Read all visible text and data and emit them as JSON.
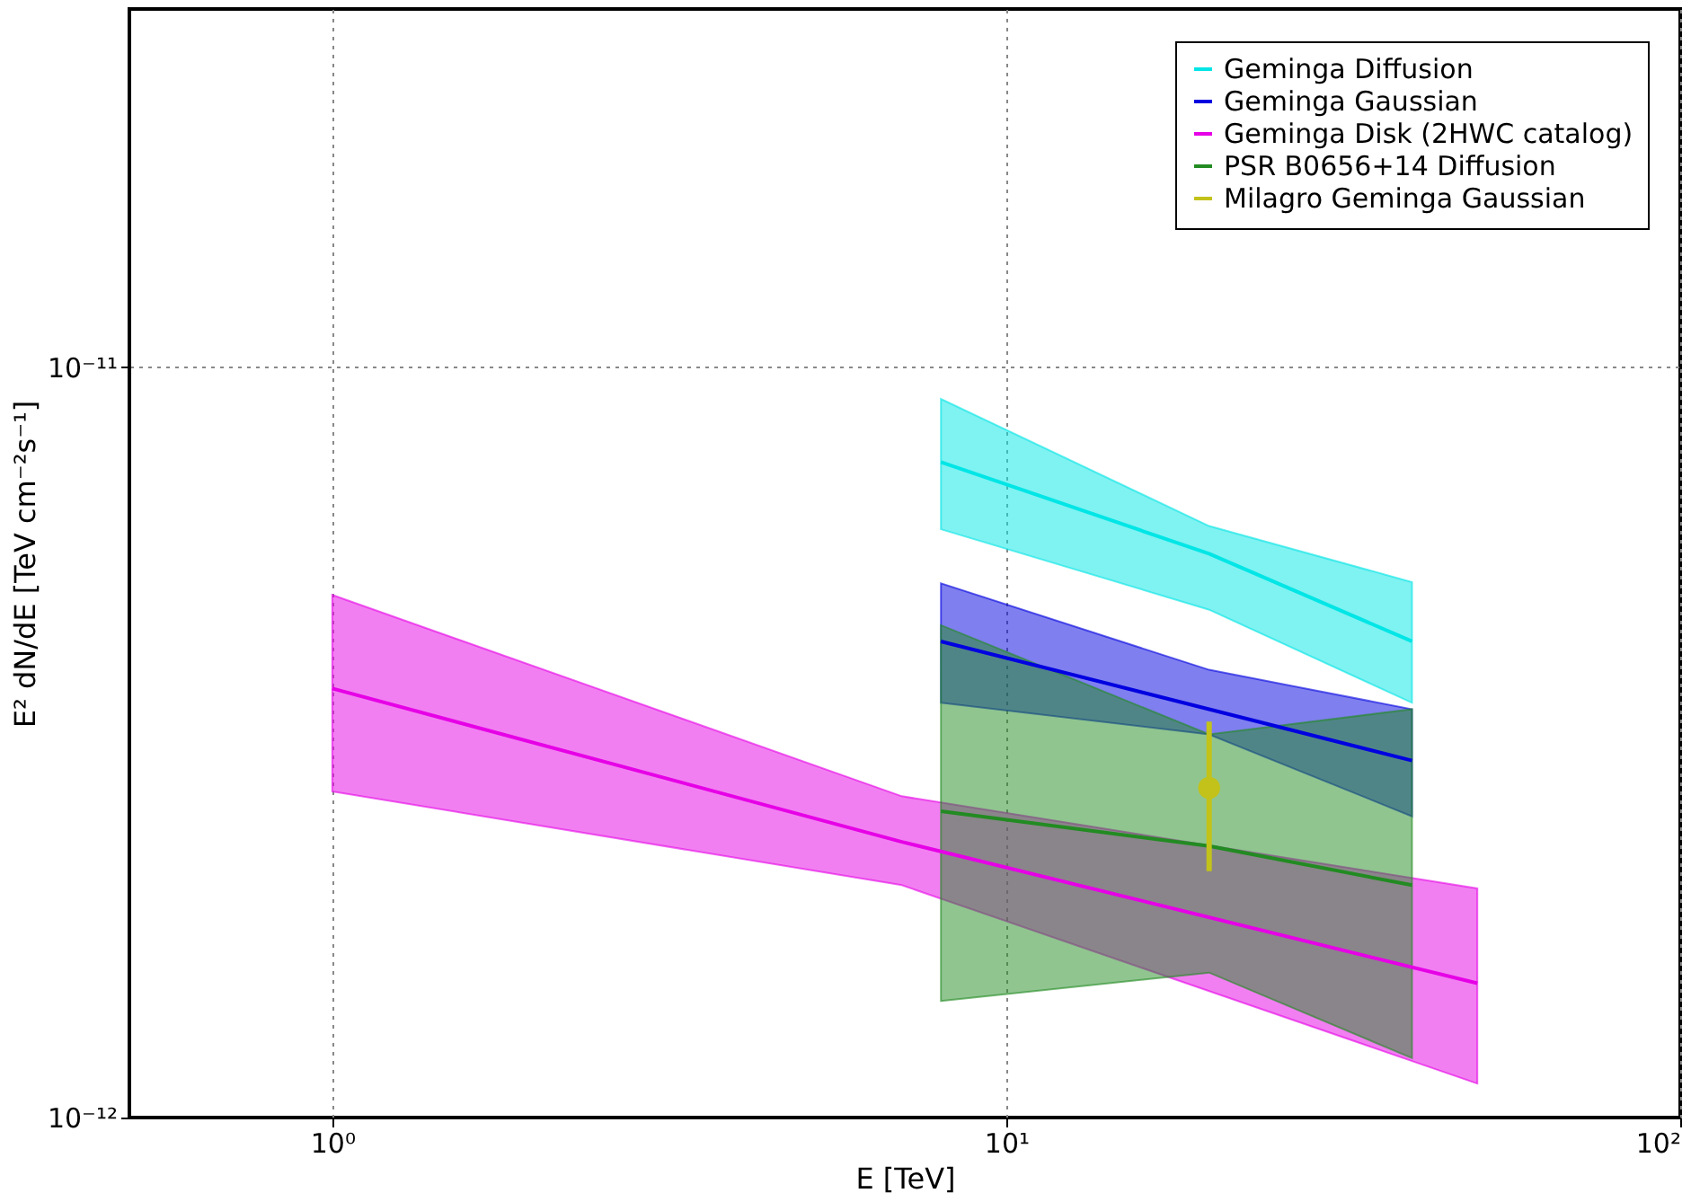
{
  "chart_data": {
    "type": "line",
    "xlabel": "E [TeV]",
    "ylabel": "E² dN/dE [TeV cm⁻²s⁻¹]",
    "log": "xy",
    "xlim": [
      0.5,
      100
    ],
    "ylim": [
      1e-12,
      3e-11
    ],
    "xticks": [
      {
        "value": 1,
        "label": "10⁰"
      },
      {
        "value": 10,
        "label": "10¹"
      },
      {
        "value": 100,
        "label": "10²"
      }
    ],
    "yticks": [
      {
        "value": 1e-12,
        "label": "10⁻¹²"
      },
      {
        "value": 1e-11,
        "label": "10⁻¹¹"
      }
    ],
    "grid": true,
    "legend": "top right",
    "line_style": "solid",
    "series": [
      {
        "name": "Geminga Diffusion",
        "color": "#00e5e5",
        "x": [
          8,
          20,
          40
        ],
        "values": [
          7.47e-12,
          5.64e-12,
          4.31e-12
        ],
        "lower": [
          6.08e-12,
          4.75e-12,
          3.57e-12
        ],
        "upper": [
          9.07e-12,
          6.14e-12,
          5.17e-12
        ]
      },
      {
        "name": "Geminga Gaussian",
        "color": "#0000e0",
        "x": [
          8,
          20,
          40
        ],
        "values": [
          4.31e-12,
          3.5e-12,
          2.99e-12
        ],
        "lower": [
          3.57e-12,
          3.24e-12,
          2.52e-12
        ],
        "upper": [
          5.15e-12,
          3.95e-12,
          3.5e-12
        ]
      },
      {
        "name": "Geminga Disk (2HWC catalog)",
        "color": "#e600e6",
        "x": [
          1,
          7,
          50
        ],
        "values": [
          3.73e-12,
          2.33e-12,
          1.51e-12
        ],
        "lower": [
          2.72e-12,
          2.04e-12,
          1.11e-12
        ],
        "upper": [
          4.97e-12,
          2.68e-12,
          2.02e-12
        ]
      },
      {
        "name": "PSR B0656+14 Diffusion",
        "color": "#228b22",
        "x": [
          8,
          20,
          40
        ],
        "values": [
          2.56e-12,
          2.3e-12,
          2.04e-12
        ],
        "lower": [
          1.43e-12,
          1.56e-12,
          1.2e-12
        ],
        "upper": [
          4.53e-12,
          3.24e-12,
          3.5e-12
        ]
      },
      {
        "name": "Milagro Geminga Gaussian",
        "type": "scatter",
        "color": "#c2c21a",
        "x": [
          20
        ],
        "values": [
          2.75e-12
        ],
        "errors": [
          [
            2.13e-12,
            3.37e-12
          ]
        ]
      }
    ]
  }
}
